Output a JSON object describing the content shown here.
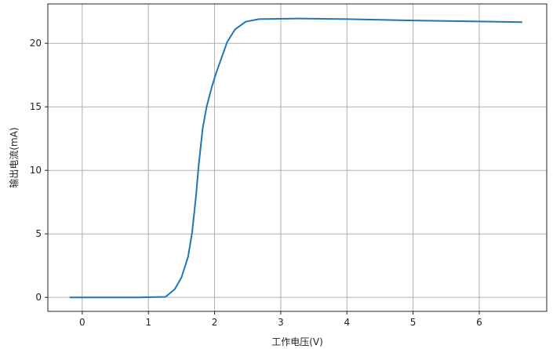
{
  "chart_data": {
    "type": "line",
    "title": "",
    "xlabel": "工作电压(V)",
    "ylabel": "输出电流(mA)",
    "xlim": [
      -0.52,
      7.02
    ],
    "ylim": [
      -1.1,
      23.1
    ],
    "xticks": [
      0,
      1,
      2,
      3,
      4,
      5,
      6
    ],
    "yticks": [
      0,
      5,
      10,
      15,
      20
    ],
    "grid": true,
    "color": "#1f77b4",
    "series": [
      {
        "x": [
          -0.19,
          0.83,
          1.26,
          1.4,
          1.5,
          1.6,
          1.66,
          1.72,
          1.76,
          1.82,
          1.88,
          1.96,
          2.02,
          2.19,
          2.31,
          2.47,
          2.67,
          3.26,
          4.0,
          5.0,
          6.0,
          6.65
        ],
        "y": [
          0,
          0,
          0.04,
          0.66,
          1.58,
          3.2,
          5.1,
          8.0,
          10.4,
          13.3,
          15.0,
          16.6,
          17.6,
          20.1,
          21.1,
          21.7,
          21.9,
          21.95,
          21.9,
          21.8,
          21.72,
          21.67
        ]
      }
    ]
  }
}
